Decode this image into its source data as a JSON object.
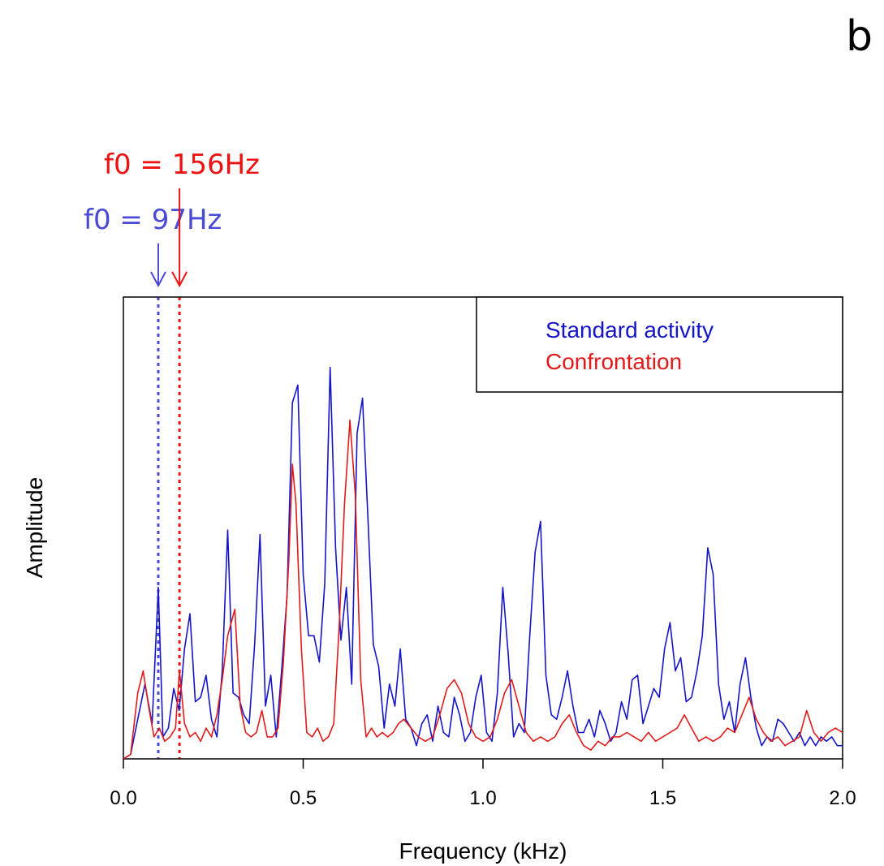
{
  "panel_label": "b",
  "annotations": [
    {
      "text": "f0 = 97Hz",
      "x": 0.097,
      "color": "#4a4ad6"
    },
    {
      "text": "f0 = 156Hz",
      "x": 0.156,
      "color": "#ee1111"
    }
  ],
  "chart_data": {
    "type": "line",
    "title": "",
    "xlabel": "Frequency (kHz)",
    "ylabel": "Amplitude",
    "xlim": [
      0,
      2
    ],
    "ylim": [
      0,
      1.05
    ],
    "xticks": [
      0.0,
      0.5,
      1.0,
      1.5,
      2.0
    ],
    "xtick_labels": [
      "0.0",
      "0.5",
      "1.0",
      "1.5",
      "2.0"
    ],
    "legend_position": "top-right",
    "grid": false,
    "series": [
      {
        "name": "Standard activity",
        "color": "#1515c8",
        "x": [
          0,
          0.02,
          0.04,
          0.06,
          0.08,
          0.097,
          0.11,
          0.125,
          0.14,
          0.155,
          0.17,
          0.185,
          0.2,
          0.215,
          0.23,
          0.245,
          0.26,
          0.275,
          0.29,
          0.305,
          0.32,
          0.335,
          0.35,
          0.365,
          0.38,
          0.395,
          0.41,
          0.425,
          0.44,
          0.455,
          0.47,
          0.485,
          0.5,
          0.515,
          0.53,
          0.545,
          0.56,
          0.575,
          0.59,
          0.605,
          0.62,
          0.635,
          0.65,
          0.665,
          0.68,
          0.695,
          0.71,
          0.725,
          0.74,
          0.755,
          0.77,
          0.785,
          0.8,
          0.815,
          0.83,
          0.845,
          0.86,
          0.875,
          0.89,
          0.905,
          0.92,
          0.935,
          0.95,
          0.965,
          0.98,
          0.995,
          1.01,
          1.025,
          1.04,
          1.055,
          1.07,
          1.085,
          1.1,
          1.115,
          1.13,
          1.145,
          1.16,
          1.175,
          1.19,
          1.205,
          1.22,
          1.235,
          1.25,
          1.265,
          1.28,
          1.295,
          1.31,
          1.325,
          1.34,
          1.355,
          1.37,
          1.385,
          1.4,
          1.415,
          1.43,
          1.445,
          1.46,
          1.475,
          1.49,
          1.505,
          1.52,
          1.535,
          1.55,
          1.565,
          1.58,
          1.595,
          1.61,
          1.625,
          1.64,
          1.655,
          1.67,
          1.685,
          1.7,
          1.715,
          1.73,
          1.745,
          1.76,
          1.775,
          1.79,
          1.805,
          1.82,
          1.835,
          1.85,
          1.865,
          1.88,
          1.895,
          1.91,
          1.925,
          1.94,
          1.955,
          1.97,
          1.985,
          2.0
        ],
        "y": [
          0,
          0.01,
          0.09,
          0.17,
          0.08,
          0.39,
          0.05,
          0.07,
          0.16,
          0.11,
          0.25,
          0.33,
          0.13,
          0.14,
          0.19,
          0.09,
          0.05,
          0.2,
          0.52,
          0.15,
          0.14,
          0.1,
          0.08,
          0.26,
          0.51,
          0.12,
          0.19,
          0.05,
          0.2,
          0.37,
          0.81,
          0.85,
          0.42,
          0.28,
          0.28,
          0.22,
          0.4,
          0.89,
          0.48,
          0.27,
          0.39,
          0.17,
          0.74,
          0.82,
          0.55,
          0.26,
          0.21,
          0.07,
          0.17,
          0.12,
          0.25,
          0.09,
          0.07,
          0.03,
          0.08,
          0.1,
          0.04,
          0.12,
          0.06,
          0.05,
          0.14,
          0.1,
          0.04,
          0.06,
          0.14,
          0.19,
          0.06,
          0.04,
          0.15,
          0.39,
          0.24,
          0.05,
          0.08,
          0.06,
          0.28,
          0.47,
          0.54,
          0.19,
          0.1,
          0.09,
          0.14,
          0.2,
          0.12,
          0.06,
          0.06,
          0.09,
          0.05,
          0.11,
          0.08,
          0.04,
          0.06,
          0.13,
          0.09,
          0.18,
          0.19,
          0.08,
          0.12,
          0.16,
          0.14,
          0.25,
          0.31,
          0.2,
          0.23,
          0.13,
          0.14,
          0.2,
          0.28,
          0.48,
          0.42,
          0.17,
          0.09,
          0.13,
          0.06,
          0.17,
          0.23,
          0.14,
          0.07,
          0.03,
          0.05,
          0.04,
          0.09,
          0.08,
          0.06,
          0.04,
          0.06,
          0.03,
          0.05,
          0.03,
          0.05,
          0.04,
          0.05,
          0.03,
          0.03
        ]
      },
      {
        "name": "Confrontation",
        "color": "#e11a1a",
        "x": [
          0,
          0.02,
          0.04,
          0.055,
          0.07,
          0.085,
          0.1,
          0.115,
          0.13,
          0.145,
          0.156,
          0.17,
          0.185,
          0.2,
          0.215,
          0.23,
          0.245,
          0.26,
          0.275,
          0.29,
          0.31,
          0.325,
          0.34,
          0.355,
          0.37,
          0.385,
          0.4,
          0.415,
          0.43,
          0.445,
          0.46,
          0.47,
          0.48,
          0.495,
          0.51,
          0.525,
          0.54,
          0.555,
          0.57,
          0.585,
          0.6,
          0.615,
          0.63,
          0.645,
          0.66,
          0.675,
          0.69,
          0.705,
          0.72,
          0.735,
          0.75,
          0.765,
          0.78,
          0.8,
          0.82,
          0.84,
          0.86,
          0.88,
          0.9,
          0.92,
          0.94,
          0.96,
          0.98,
          1.0,
          1.02,
          1.04,
          1.06,
          1.08,
          1.1,
          1.12,
          1.14,
          1.16,
          1.18,
          1.2,
          1.22,
          1.24,
          1.26,
          1.28,
          1.3,
          1.32,
          1.34,
          1.36,
          1.38,
          1.4,
          1.42,
          1.44,
          1.46,
          1.48,
          1.5,
          1.52,
          1.54,
          1.56,
          1.58,
          1.6,
          1.62,
          1.64,
          1.66,
          1.68,
          1.7,
          1.72,
          1.74,
          1.76,
          1.78,
          1.8,
          1.82,
          1.84,
          1.86,
          1.88,
          1.9,
          1.92,
          1.94,
          1.96,
          1.98,
          2.0
        ],
        "y": [
          0,
          0.01,
          0.15,
          0.2,
          0.12,
          0.05,
          0.07,
          0.04,
          0.05,
          0.07,
          0.2,
          0.08,
          0.05,
          0.06,
          0.04,
          0.07,
          0.05,
          0.1,
          0.18,
          0.28,
          0.34,
          0.12,
          0.06,
          0.05,
          0.06,
          0.11,
          0.05,
          0.05,
          0.07,
          0.22,
          0.45,
          0.67,
          0.58,
          0.25,
          0.06,
          0.05,
          0.07,
          0.04,
          0.05,
          0.08,
          0.3,
          0.58,
          0.77,
          0.6,
          0.18,
          0.05,
          0.07,
          0.05,
          0.06,
          0.05,
          0.06,
          0.08,
          0.09,
          0.07,
          0.05,
          0.04,
          0.05,
          0.1,
          0.16,
          0.18,
          0.15,
          0.08,
          0.05,
          0.04,
          0.05,
          0.09,
          0.15,
          0.18,
          0.12,
          0.06,
          0.04,
          0.05,
          0.04,
          0.05,
          0.08,
          0.1,
          0.06,
          0.03,
          0.02,
          0.04,
          0.03,
          0.05,
          0.05,
          0.06,
          0.05,
          0.04,
          0.06,
          0.04,
          0.05,
          0.06,
          0.07,
          0.1,
          0.07,
          0.04,
          0.05,
          0.04,
          0.05,
          0.07,
          0.06,
          0.1,
          0.14,
          0.09,
          0.06,
          0.04,
          0.05,
          0.03,
          0.04,
          0.05,
          0.11,
          0.06,
          0.04,
          0.06,
          0.07,
          0.06
        ]
      }
    ]
  }
}
